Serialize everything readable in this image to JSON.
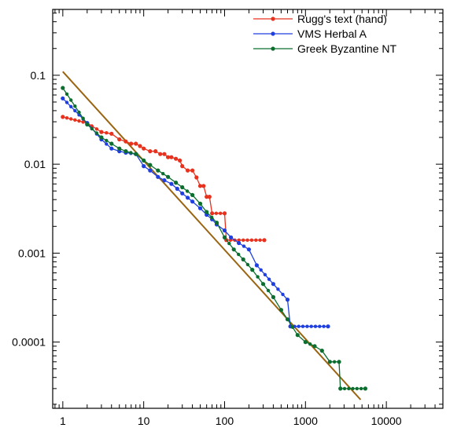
{
  "chart_data": {
    "type": "line",
    "title": "",
    "xlabel": "",
    "ylabel": "",
    "x_scale": "log",
    "y_scale": "log",
    "xlim": [
      0.75,
      50000
    ],
    "ylim": [
      1.8e-05,
      0.55
    ],
    "grid": false,
    "legend_position": "top-right",
    "x_ticks": [
      {
        "value": 1,
        "label": "1"
      },
      {
        "value": 10,
        "label": "10"
      },
      {
        "value": 100,
        "label": "100"
      },
      {
        "value": 1000,
        "label": "1000"
      },
      {
        "value": 10000,
        "label": "10000"
      }
    ],
    "y_ticks": [
      {
        "value": 0.1,
        "label": "0.1"
      },
      {
        "value": 0.01,
        "label": "0.01"
      },
      {
        "value": 0.001,
        "label": "0.001"
      },
      {
        "value": 0.0001,
        "label": "0.0001"
      }
    ],
    "series": [
      {
        "name": "Rugg's text (hand)",
        "color": "#e8321e",
        "points": [
          [
            1,
            0.034
          ],
          [
            2,
            0.029
          ],
          [
            3,
            0.023
          ],
          [
            4,
            0.022
          ],
          [
            5,
            0.019
          ],
          [
            6,
            0.018
          ],
          [
            7,
            0.017
          ],
          [
            8,
            0.017
          ],
          [
            9,
            0.016
          ],
          [
            10,
            0.015
          ],
          [
            12,
            0.014
          ],
          [
            14,
            0.014
          ],
          [
            16,
            0.013
          ],
          [
            18,
            0.013
          ],
          [
            20,
            0.012
          ],
          [
            22,
            0.012
          ],
          [
            25,
            0.0115
          ],
          [
            28,
            0.011
          ],
          [
            30,
            0.0095
          ],
          [
            35,
            0.0085
          ],
          [
            40,
            0.0085
          ],
          [
            45,
            0.0071
          ],
          [
            50,
            0.0057
          ],
          [
            55,
            0.0057
          ],
          [
            60,
            0.0043
          ],
          [
            65,
            0.0043
          ],
          [
            70,
            0.0028
          ],
          [
            100,
            0.0028
          ],
          [
            105,
            0.0014
          ],
          [
            310,
            0.0014
          ]
        ]
      },
      {
        "name": "VMS Herbal A",
        "color": "#1f3fe0",
        "points": [
          [
            1,
            0.055
          ],
          [
            2,
            0.029
          ],
          [
            3,
            0.019
          ],
          [
            4,
            0.015
          ],
          [
            5,
            0.014
          ],
          [
            6,
            0.0135
          ],
          [
            8,
            0.013
          ],
          [
            10,
            0.0095
          ],
          [
            12,
            0.0085
          ],
          [
            15,
            0.0072
          ],
          [
            18,
            0.0066
          ],
          [
            22,
            0.006
          ],
          [
            26,
            0.0053
          ],
          [
            30,
            0.0047
          ],
          [
            35,
            0.0042
          ],
          [
            40,
            0.0038
          ],
          [
            50,
            0.0032
          ],
          [
            60,
            0.0027
          ],
          [
            70,
            0.0024
          ],
          [
            80,
            0.0021
          ],
          [
            100,
            0.0018
          ],
          [
            120,
            0.0015
          ],
          [
            150,
            0.0013
          ],
          [
            200,
            0.0011
          ],
          [
            250,
            0.00073
          ],
          [
            400,
            0.00045
          ],
          [
            600,
            0.0003
          ],
          [
            650,
            0.00015
          ],
          [
            1900,
            0.00015
          ]
        ]
      },
      {
        "name": "Greek Byzantine NT",
        "color": "#0b6e2e",
        "points": [
          [
            1,
            0.072
          ],
          [
            2,
            0.028
          ],
          [
            3,
            0.02
          ],
          [
            4,
            0.017
          ],
          [
            5,
            0.015
          ],
          [
            6,
            0.014
          ],
          [
            8,
            0.013
          ],
          [
            10,
            0.011
          ],
          [
            12,
            0.0098
          ],
          [
            15,
            0.0085
          ],
          [
            20,
            0.0072
          ],
          [
            25,
            0.0062
          ],
          [
            30,
            0.0055
          ],
          [
            40,
            0.0045
          ],
          [
            50,
            0.0036
          ],
          [
            60,
            0.0029
          ],
          [
            80,
            0.0022
          ],
          [
            100,
            0.0015
          ],
          [
            130,
            0.0011
          ],
          [
            170,
            0.00085
          ],
          [
            220,
            0.00065
          ],
          [
            300,
            0.00045
          ],
          [
            400,
            0.00032
          ],
          [
            500,
            0.00023
          ],
          [
            600,
            0.00018
          ],
          [
            800,
            0.00012
          ],
          [
            1000,
            0.0001
          ],
          [
            1300,
            9e-05
          ],
          [
            1600,
            8e-05
          ],
          [
            2000,
            6e-05
          ],
          [
            2600,
            6e-05
          ],
          [
            2700,
            3e-05
          ],
          [
            5500,
            3e-05
          ]
        ]
      },
      {
        "name": "",
        "color": "#9a6410",
        "points": [
          [
            1,
            0.11
          ],
          [
            4800,
            2.25e-05
          ]
        ]
      }
    ]
  }
}
